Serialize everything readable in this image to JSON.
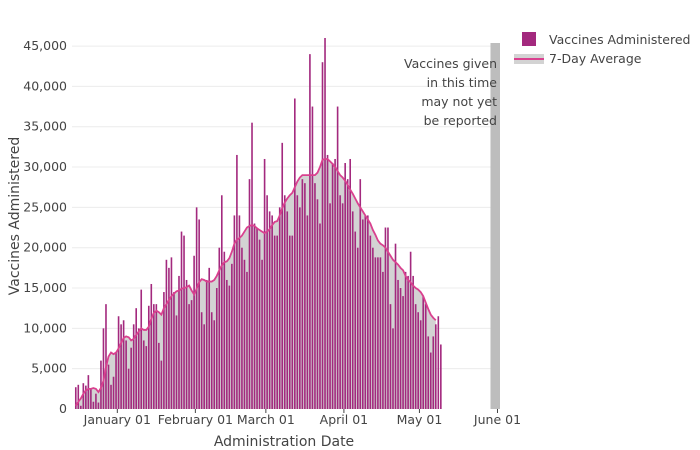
{
  "chart_data": {
    "type": "bar",
    "x_axis_label": "Administration Date",
    "y_axis_label": "Vaccines Administered",
    "x_tick_labels": [
      {
        "date": "2021-01-01",
        "label": "January 01"
      },
      {
        "date": "2021-02-01",
        "label": "February 01"
      },
      {
        "date": "2021-03-01",
        "label": "March 01"
      },
      {
        "date": "2021-04-01",
        "label": "April 01"
      },
      {
        "date": "2021-05-01",
        "label": "May 01"
      },
      {
        "date": "2021-06-01",
        "label": "June 01"
      }
    ],
    "x_range": [
      "2020-12-14",
      "2021-06-02"
    ],
    "y_ticks": [
      0,
      5000,
      10000,
      15000,
      20000,
      25000,
      30000,
      35000,
      40000,
      45000
    ],
    "y_tick_labels": [
      "0",
      "5,000",
      "10,000",
      "15,000",
      "20,000",
      "25,000",
      "30,000",
      "35,000",
      "40,000",
      "45,000"
    ],
    "ylim": [
      0,
      46000
    ],
    "grid": "horizontal",
    "legend_position": "top-right",
    "annotation": [
      "Vaccines given",
      "in this time",
      "may not yet",
      "be reported"
    ],
    "reporting_lag_start": "2021-06-01",
    "series": [
      {
        "name": "Vaccines Administered",
        "type": "bar",
        "color": "#a3297e",
        "start_date": "2020-12-15",
        "values": [
          2700,
          3000,
          400,
          3200,
          2900,
          4200,
          2500,
          900,
          1900,
          800,
          6000,
          10000,
          13000,
          5500,
          3000,
          4000,
          7000,
          11500,
          10500,
          11000,
          8500,
          5000,
          7600,
          10500,
          12500,
          10000,
          14800,
          8500,
          7800,
          12800,
          15500,
          13000,
          13000,
          8200,
          6000,
          14500,
          18500,
          17500,
          18800,
          14500,
          11600,
          16500,
          22000,
          21500,
          16000,
          13000,
          13500,
          19000,
          25000,
          23500,
          12000,
          10500,
          16000,
          17500,
          12000,
          11000,
          15000,
          20000,
          26500,
          19500,
          16000,
          15300,
          18000,
          24000,
          31500,
          24000,
          20000,
          18500,
          17000,
          28500,
          35500,
          23000,
          22500,
          21000,
          18500,
          31000,
          26500,
          24500,
          24000,
          21500,
          21500,
          25000,
          33000,
          26500,
          24500,
          21500,
          21500,
          38500,
          26500,
          25000,
          28500,
          28000,
          24000,
          44000,
          37500,
          28000,
          26000,
          23000,
          43000,
          46000,
          31500,
          25500,
          30500,
          31000,
          37500,
          26500,
          25500,
          30500,
          28500,
          31000,
          24500,
          22000,
          20000,
          28500,
          23500,
          24000,
          24000,
          21500,
          20000,
          18800,
          18800,
          18800,
          17000,
          22500,
          22500,
          13000,
          10000,
          20500,
          16000,
          15000,
          14000,
          17000,
          16500,
          19500,
          16500,
          13000,
          12000,
          11000,
          14000,
          13000,
          9000,
          7000,
          9000,
          10500,
          11500,
          8000
        ]
      },
      {
        "name": "7-Day Average",
        "type": "area",
        "line_color": "#d9418f",
        "fill_color": "#d3d3d3",
        "start_date": "2020-12-15",
        "values": [
          400,
          900,
          1300,
          1900,
          2300,
          2500,
          2500,
          2600,
          2500,
          2100,
          2600,
          3500,
          5200,
          6500,
          7000,
          6800,
          7000,
          7500,
          8200,
          8800,
          9000,
          8900,
          8500,
          8700,
          9200,
          9600,
          10000,
          9800,
          9800,
          10200,
          11200,
          11900,
          12200,
          12000,
          11700,
          12500,
          13000,
          13500,
          14000,
          14300,
          14600,
          14700,
          14900,
          15000,
          15100,
          15300,
          14700,
          14200,
          14900,
          15700,
          16100,
          16000,
          15800,
          15800,
          15800,
          16000,
          16500,
          17200,
          17800,
          18200,
          18300,
          18700,
          19500,
          20500,
          21000,
          21200,
          21500,
          22000,
          22500,
          22700,
          22800,
          22700,
          22400,
          22200,
          22000,
          21800,
          22000,
          22300,
          22800,
          23200,
          23300,
          24000,
          24900,
          25600,
          26100,
          26500,
          26800,
          27500,
          28200,
          28700,
          29000,
          29000,
          29000,
          29000,
          29000,
          29000,
          29300,
          30000,
          30900,
          31000,
          31000,
          30700,
          30400,
          30000,
          29500,
          29000,
          28700,
          28300,
          27800,
          27200,
          26700,
          26100,
          25500,
          25000,
          24500,
          24000,
          23500,
          23000,
          22200,
          21600,
          20900,
          20500,
          20300,
          20000,
          19500,
          19000,
          18500,
          18200,
          17900,
          17500,
          17200,
          16500,
          16000,
          15700,
          15300,
          15000,
          14800,
          14500,
          14000,
          13200,
          12400,
          11700,
          11300,
          11000
        ]
      }
    ]
  }
}
